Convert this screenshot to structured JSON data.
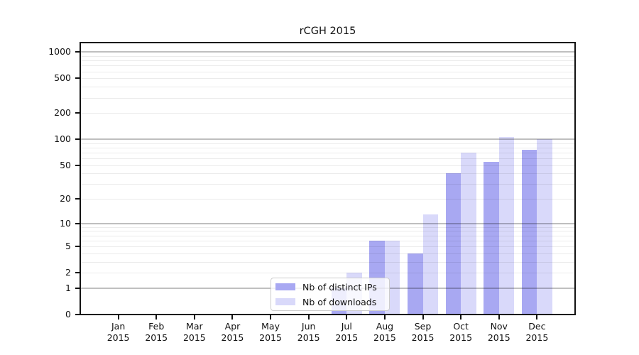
{
  "chart_data": {
    "type": "bar",
    "title": "rCGH 2015",
    "months": [
      "Jan",
      "Feb",
      "Mar",
      "Apr",
      "May",
      "Jun",
      "Jul",
      "Aug",
      "Sep",
      "Oct",
      "Nov",
      "Dec"
    ],
    "year_label": "2015",
    "series": [
      {
        "name": "Nb of distinct IPs",
        "color": "#a8a8f2",
        "values": [
          0,
          0,
          0,
          0,
          0,
          0,
          1,
          6,
          4,
          40,
          55,
          75
        ]
      },
      {
        "name": "Nb of downloads",
        "color": "#d9d9fa",
        "values": [
          0,
          0,
          0,
          0,
          0,
          0,
          2,
          6,
          13,
          70,
          105,
          100
        ]
      }
    ],
    "yscale": "log1p",
    "yticks": [
      0,
      1,
      2,
      5,
      10,
      20,
      50,
      100,
      200,
      500,
      1000
    ],
    "ylim": [
      0,
      1280
    ],
    "grid": "horizontal major+minor",
    "legend_position": "inside lower-center",
    "grid_major_color": "#bfbfbf",
    "grid_minor_color": "#ebebeb",
    "axis_color": "#121212"
  },
  "legend": {
    "items": [
      {
        "label": "Nb of distinct IPs",
        "color": "#a8a8f2"
      },
      {
        "label": "Nb of downloads",
        "color": "#d9d9fa"
      }
    ]
  }
}
